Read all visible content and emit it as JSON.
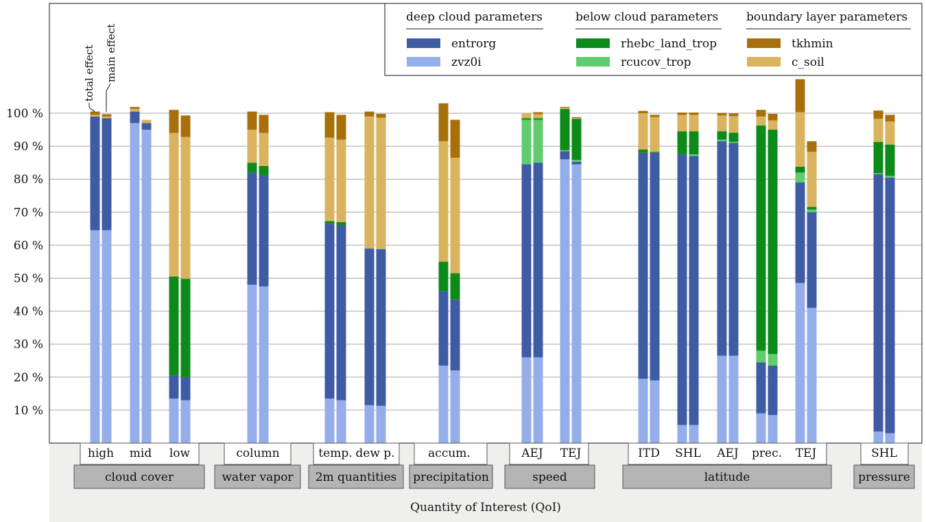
{
  "chart_data": {
    "type": "bar",
    "stacked": true,
    "ylim": [
      0,
      100
    ],
    "yticks": [
      10,
      20,
      30,
      40,
      50,
      60,
      70,
      80,
      90,
      100
    ],
    "ytick_suffix": " %",
    "grid": "horizontal",
    "xlabel": "Quantity of Interest (QoI)",
    "bar_annotations": [
      "total effect",
      "main effect"
    ],
    "parameter_groups": [
      {
        "title": "deep cloud parameters",
        "params": [
          "entrorg",
          "zvz0i"
        ]
      },
      {
        "title": "below cloud parameters",
        "params": [
          "rhebc_land_trop",
          "rcucov_trop"
        ]
      },
      {
        "title": "boundary layer parameters",
        "params": [
          "tkhmin",
          "c_soil"
        ]
      }
    ],
    "series": [
      {
        "name": "zvz0i",
        "color": "#95aee9"
      },
      {
        "name": "entrorg",
        "color": "#3e5ba4"
      },
      {
        "name": "rcucov_trop",
        "color": "#61cc6d"
      },
      {
        "name": "rhebc_land_trop",
        "color": "#0c8a1a"
      },
      {
        "name": "c_soil",
        "color": "#dab35e"
      },
      {
        "name": "tkhmin",
        "color": "#a8700b"
      }
    ],
    "legend_position": "top-right",
    "groups": [
      {
        "label": "cloud cover",
        "categories": [
          {
            "label": "high",
            "bars": [
              [
                64.5,
                34.5,
                0,
                0,
                0.5,
                1.0
              ],
              [
                64.5,
                34.0,
                0,
                0,
                0.5,
                0.7
              ]
            ]
          },
          {
            "label": "mid",
            "bars": [
              [
                97.0,
                3.5,
                0,
                0,
                0.8,
                0.6
              ],
              [
                95.0,
                2.0,
                0,
                0,
                1.0,
                0
              ]
            ]
          },
          {
            "label": "low",
            "bars": [
              [
                13.5,
                7.0,
                0,
                30.0,
                43.5,
                7.0
              ],
              [
                13.0,
                7.0,
                0,
                29.8,
                43.0,
                6.5
              ]
            ]
          }
        ]
      },
      {
        "label": "water vapor",
        "categories": [
          {
            "label": "column",
            "bars": [
              [
                48.0,
                34.0,
                0,
                3.0,
                10.0,
                5.5
              ],
              [
                47.5,
                33.5,
                0,
                3.0,
                10.0,
                5.5
              ]
            ]
          }
        ]
      },
      {
        "label": "2m quantities",
        "categories": [
          {
            "label": "temp.",
            "bars": [
              [
                13.5,
                53.0,
                0,
                0.8,
                25.3,
                7.7
              ],
              [
                13.0,
                53.0,
                0,
                1.0,
                25.0,
                7.5
              ]
            ]
          },
          {
            "label": "dew p.",
            "bars": [
              [
                11.5,
                47.5,
                0,
                0,
                40.0,
                1.5
              ],
              [
                11.3,
                47.5,
                0,
                0,
                39.8,
                1.2
              ]
            ]
          }
        ]
      },
      {
        "label": "precipitation",
        "categories": [
          {
            "label": "accum.",
            "bars": [
              [
                23.5,
                22.5,
                0,
                9.0,
                36.5,
                11.5
              ],
              [
                22.0,
                21.5,
                0,
                8.0,
                35.0,
                11.5
              ]
            ]
          }
        ]
      },
      {
        "label": "speed",
        "categories": [
          {
            "label": "AEJ",
            "bars": [
              [
                26.0,
                58.5,
                13.5,
                0.5,
                1.5,
                0
              ],
              [
                26.0,
                59.0,
                13.0,
                0.5,
                1.2,
                0.6
              ]
            ]
          },
          {
            "label": "TEJ",
            "bars": [
              [
                86.0,
                2.5,
                0.3,
                12.5,
                0.3,
                0.3
              ],
              [
                84.5,
                0.8,
                0.5,
                12.5,
                0.2,
                0.3
              ]
            ]
          }
        ]
      },
      {
        "label": "latitude",
        "categories": [
          {
            "label": "ITD",
            "bars": [
              [
                19.5,
                68.5,
                0,
                1.0,
                11.0,
                0.7
              ],
              [
                19.0,
                69.0,
                0,
                0.3,
                10.5,
                0.7
              ]
            ]
          },
          {
            "label": "SHL",
            "bars": [
              [
                5.5,
                82.0,
                0,
                7.0,
                5.0,
                0.7
              ],
              [
                5.5,
                81.5,
                0.5,
                7.0,
                5.0,
                0.7
              ]
            ]
          },
          {
            "label": "AEJ",
            "bars": [
              [
                26.5,
                65.0,
                0.5,
                2.5,
                4.8,
                0.8
              ],
              [
                26.5,
                64.5,
                0.3,
                2.8,
                5.0,
                0.8
              ]
            ]
          },
          {
            "label": "prec.",
            "bars": [
              [
                9.0,
                15.5,
                3.5,
                68.3,
                2.7,
                2.0
              ],
              [
                8.5,
                15.0,
                3.5,
                68.0,
                2.8,
                2.0
              ]
            ]
          },
          {
            "label": "TEJ",
            "bars": [
              [
                48.5,
                30.5,
                3.0,
                1.8,
                16.5,
                10.0
              ],
              [
                41.0,
                29.0,
                0.8,
                0.8,
                16.7,
                3.2
              ]
            ]
          }
        ]
      },
      {
        "label": "pressure",
        "categories": [
          {
            "label": "SHL",
            "bars": [
              [
                3.5,
                78.0,
                0.3,
                9.5,
                7.0,
                2.5
              ],
              [
                3.0,
                77.5,
                0.5,
                9.5,
                7.0,
                2.0
              ]
            ]
          }
        ]
      }
    ]
  }
}
